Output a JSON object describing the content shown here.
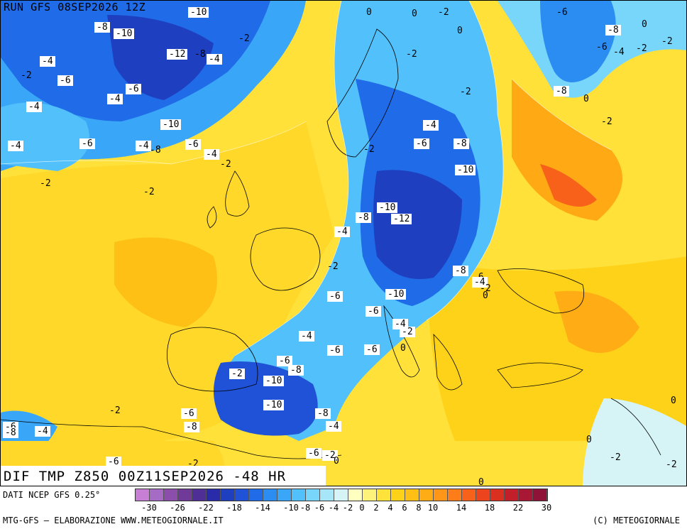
{
  "header": {
    "run_title": "RUN GFS 08SEP2026 12Z"
  },
  "map": {
    "field_title": "DIF TMP Z850 00Z11SEP2026 -48 HR",
    "contour_labels": [
      {
        "text": "-10"
      },
      {
        "text": "0"
      },
      {
        "text": "0"
      },
      {
        "text": "-2"
      },
      {
        "text": "-6"
      },
      {
        "text": "-8"
      },
      {
        "text": "-10"
      },
      {
        "text": "-2"
      },
      {
        "text": "0"
      },
      {
        "text": "-8"
      },
      {
        "text": "0"
      },
      {
        "text": "-4"
      },
      {
        "text": "-12"
      },
      {
        "text": "-8"
      },
      {
        "text": "-4"
      },
      {
        "text": "-2"
      },
      {
        "text": "-6"
      },
      {
        "text": "-4"
      },
      {
        "text": "-2"
      },
      {
        "text": "-2"
      },
      {
        "text": "-2"
      },
      {
        "text": "-6"
      },
      {
        "text": "-6"
      },
      {
        "text": "-2"
      },
      {
        "text": "-4"
      },
      {
        "text": "-8"
      },
      {
        "text": "0"
      },
      {
        "text": "-4"
      },
      {
        "text": "-10"
      },
      {
        "text": "-2"
      },
      {
        "text": "-4"
      },
      {
        "text": "-4"
      },
      {
        "text": "-6"
      },
      {
        "text": "-4"
      },
      {
        "text": "-8"
      },
      {
        "text": "-6"
      },
      {
        "text": "-4"
      },
      {
        "text": "-2"
      },
      {
        "text": "-6"
      },
      {
        "text": "-8"
      },
      {
        "text": "-2"
      },
      {
        "text": "-10"
      },
      {
        "text": "-2"
      },
      {
        "text": "-2"
      },
      {
        "text": "-10"
      },
      {
        "text": "-8"
      },
      {
        "text": "-12"
      },
      {
        "text": "-4"
      },
      {
        "text": "-2"
      },
      {
        "text": "-8"
      },
      {
        "text": "-6"
      },
      {
        "text": "-4"
      },
      {
        "text": "-2"
      },
      {
        "text": "0"
      },
      {
        "text": "-6"
      },
      {
        "text": "-10"
      },
      {
        "text": "-6"
      },
      {
        "text": "-4"
      },
      {
        "text": "-2"
      },
      {
        "text": "-4"
      },
      {
        "text": "-6"
      },
      {
        "text": "-6"
      },
      {
        "text": "0"
      },
      {
        "text": "-6"
      },
      {
        "text": "-8"
      },
      {
        "text": "-2"
      },
      {
        "text": "-10"
      },
      {
        "text": "-2"
      },
      {
        "text": "-10"
      },
      {
        "text": "-6"
      },
      {
        "text": "-8"
      },
      {
        "text": "0"
      },
      {
        "text": "-6"
      },
      {
        "text": "-8"
      },
      {
        "text": "-4"
      },
      {
        "text": "-4"
      },
      {
        "text": "-8"
      },
      {
        "text": "0"
      },
      {
        "text": "-6"
      },
      {
        "text": "-2"
      },
      {
        "text": "0"
      },
      {
        "text": "-2"
      },
      {
        "text": "-2"
      },
      {
        "text": "-6"
      },
      {
        "text": "-2"
      },
      {
        "text": "0"
      }
    ]
  },
  "footer": {
    "data_source": "DATI NCEP GFS 0.25°",
    "credit_left": "MTG-GFS – ELABORAZIONE WWW.METEOGIORNALE.IT",
    "credit_right": "(C) METEOGIORNALE"
  },
  "legend": {
    "colors": [
      "#c77fd6",
      "#a66bc4",
      "#8b4fab",
      "#6f3a98",
      "#4f2e96",
      "#2a2ba8",
      "#1e3fbf",
      "#1f52d6",
      "#1f6be8",
      "#2b8cf2",
      "#3aa6f7",
      "#52c0fa",
      "#79d6fb",
      "#a6e6f8",
      "#d6f4f6",
      "#ffffc0",
      "#fff27a",
      "#ffe23a",
      "#ffd21a",
      "#ffbf15",
      "#ffac15",
      "#ff9617",
      "#ff7d18",
      "#f7611a",
      "#ec451d",
      "#d9301f",
      "#c21f2a",
      "#a81733",
      "#8f1238"
    ],
    "ticks": [
      "-30",
      "-26",
      "-22",
      "-18",
      "-14",
      "-10",
      "-8",
      "-6",
      "-4",
      "-2",
      "0",
      "2",
      "4",
      "6",
      "8",
      "10",
      "14",
      "18",
      "22",
      "30"
    ]
  }
}
